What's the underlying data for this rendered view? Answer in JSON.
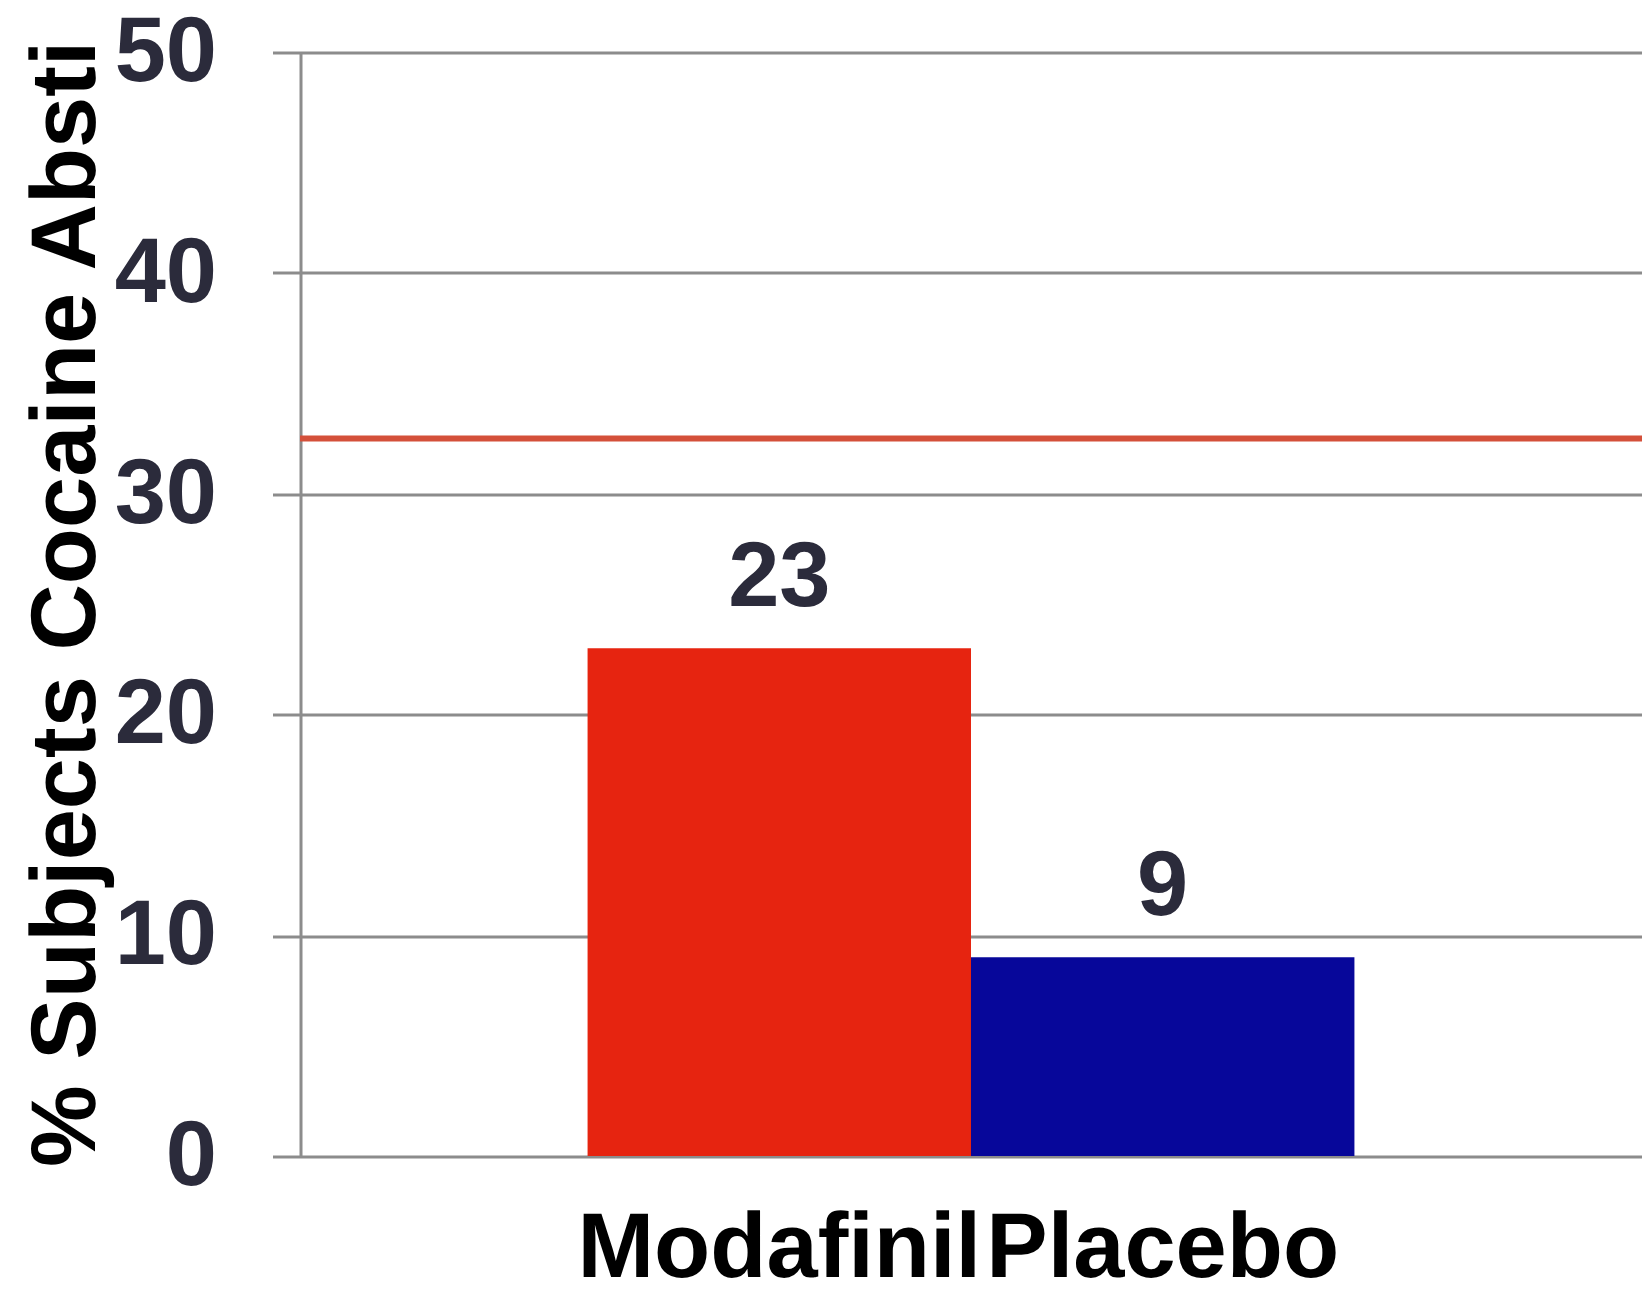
{
  "chart_data": {
    "type": "bar",
    "ylabel": "% Subjects Cocaine Absti",
    "categories": [
      "Modafinil",
      "Placebo"
    ],
    "values": [
      23,
      9
    ],
    "colors": [
      "#e62410",
      "#07079a"
    ],
    "ylim": [
      0,
      50
    ],
    "yticks": [
      0,
      10,
      20,
      30,
      40,
      50
    ],
    "grid": "y",
    "data_labels": true,
    "ref_lines": [
      {
        "axis": "y",
        "value": 32.5,
        "color": "#d4503a"
      }
    ]
  }
}
